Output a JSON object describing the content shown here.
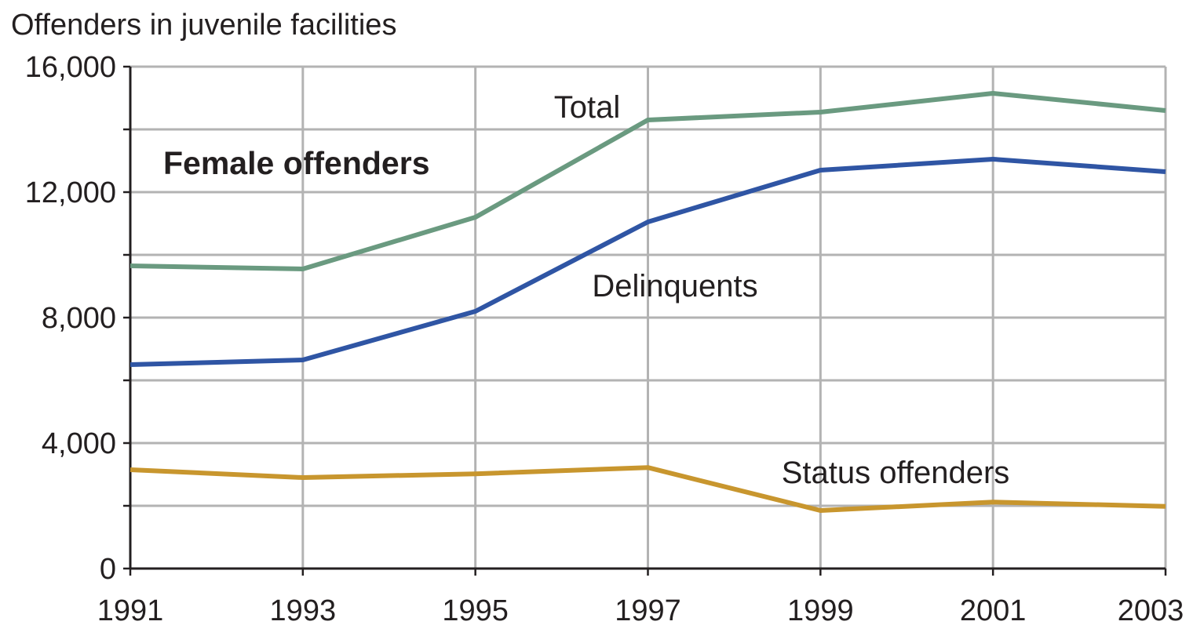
{
  "chart_data": {
    "type": "line",
    "ylabel": "Offenders in juvenile facilities",
    "subtitle": "Female offenders",
    "x": [
      1991,
      1993,
      1995,
      1997,
      1999,
      2001,
      2003
    ],
    "x_tick_labels": [
      "1991",
      "1993",
      "1995",
      "1997",
      "1999",
      "2001",
      "2003"
    ],
    "ylim": [
      0,
      16000
    ],
    "y_ticks": [
      0,
      4000,
      8000,
      12000,
      16000
    ],
    "y_tick_labels": [
      "0",
      "4,000",
      "8,000",
      "12,000",
      "16,000"
    ],
    "grid": true,
    "series": [
      {
        "name": "Total",
        "color": "#6a9a80",
        "values": [
          9650,
          9550,
          11200,
          14300,
          14550,
          15150,
          14600
        ]
      },
      {
        "name": "Delinquents",
        "color": "#2f55a4",
        "values": [
          6500,
          6650,
          8200,
          11050,
          12700,
          13050,
          12650
        ]
      },
      {
        "name": "Status offenders",
        "color": "#c8962e",
        "values": [
          3150,
          2900,
          3020,
          3220,
          1850,
          2120,
          1980
        ]
      }
    ]
  }
}
